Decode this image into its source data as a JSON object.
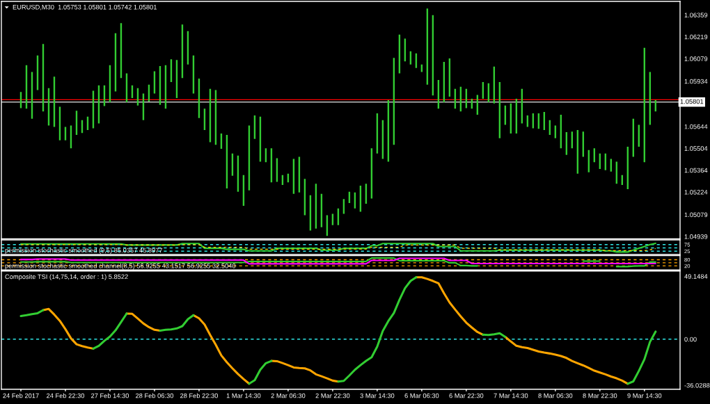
{
  "chart_data": [
    {
      "type": "bar",
      "title": "EURUSD,M30  1.05753 1.05801 1.05742 1.05801",
      "categories": [
        null,
        null,
        null,
        null,
        null,
        null,
        null,
        null,
        null,
        null,
        null,
        null,
        null,
        null,
        null,
        null,
        null,
        null,
        null,
        null,
        null,
        null,
        null,
        null,
        null,
        null,
        null,
        null,
        null,
        null,
        null,
        null,
        null,
        null,
        null,
        null,
        null,
        null,
        null,
        null,
        null,
        null,
        null,
        null,
        null,
        null,
        null,
        null,
        null,
        null,
        null,
        null,
        null,
        null,
        null,
        null,
        null,
        null,
        null,
        null,
        null,
        null,
        null,
        null,
        null,
        null,
        null,
        null,
        null,
        null,
        null,
        null,
        null,
        null,
        null,
        null,
        null,
        null,
        null,
        null,
        null,
        null,
        null,
        null,
        null,
        null,
        null,
        null,
        null,
        null,
        null,
        null,
        null,
        null,
        null,
        null,
        null,
        null,
        null,
        null,
        null,
        null,
        null,
        null,
        null,
        null,
        null,
        null,
        null,
        null,
        null,
        null,
        null,
        null,
        null
      ],
      "base": [
        1.05762,
        1.05758,
        1.05694,
        1.05878,
        1.05741,
        1.05651,
        1.05642,
        1.05556,
        1.05556,
        1.05505,
        1.0559,
        1.05603,
        1.05621,
        1.05633,
        1.05664,
        1.05775,
        1.058,
        1.05869,
        1.05955,
        1.058,
        1.05826,
        1.05779,
        1.05685,
        1.05804,
        1.05856,
        1.05783,
        1.05758,
        1.05929,
        1.05826,
        1.05955,
        1.06041,
        1.05856,
        1.05698,
        1.05621,
        1.05543,
        1.05527,
        1.05501,
        1.05247,
        1.05329,
        1.05226,
        1.05136,
        1.05235,
        1.05565,
        1.05419,
        1.05415,
        1.05286,
        1.0529,
        1.05269,
        1.05286,
        1.05213,
        1.05222,
        1.05076,
        1.04978,
        1.0499,
        1.04999,
        1.04943,
        1.05012,
        1.05012,
        1.05085,
        1.05153,
        1.05119,
        1.05098,
        1.05149,
        1.05183,
        1.05471,
        1.05437,
        1.05419,
        1.05527,
        1.05985,
        1.06062,
        1.06041,
        1.06019,
        1.05994,
        1.05912,
        1.05843,
        1.05758,
        1.058,
        1.05835,
        1.05758,
        1.05741,
        1.05762,
        1.05758,
        1.05719,
        1.05822,
        1.058,
        1.05792,
        1.05569,
        1.05655,
        1.05599,
        1.05599,
        1.05664,
        1.05642,
        1.05633,
        1.05629,
        1.05621,
        1.0559,
        1.05569,
        1.05505,
        1.05462,
        1.05505,
        1.05342,
        1.0545,
        1.05351,
        1.05415,
        1.05372,
        1.05364,
        1.05355,
        1.05277,
        1.05269,
        1.05243,
        1.0545,
        1.05514,
        1.05415,
        1.05655,
        1.05741
      ],
      "values": [
        0.00103,
        0.00279,
        0.003,
        0.00222,
        0.00432,
        0.00239,
        0.00322,
        0.00215,
        0.00086,
        0.00146,
        0.00155,
        0.00082,
        0.00086,
        0.0024,
        0.00244,
        0.00133,
        0.00237,
        0.00373,
        0.00352,
        0.00185,
        0.00082,
        0.00111,
        0.00171,
        0.00108,
        0.00142,
        0.00249,
        0.00279,
        0.00146,
        0.00245,
        0.00343,
        0.00214,
        0.00244,
        0.00253,
        0.00137,
        0.00343,
        0.00351,
        0.00098,
        0.00343,
        0.00142,
        0.00232,
        0.00197,
        0.00416,
        0.0015,
        0.00288,
        0.0009,
        0.00219,
        0.00151,
        0.00064,
        0.00056,
        0.00224,
        0.00228,
        0.00232,
        0.00226,
        0.00287,
        0.00214,
        0.00133,
        0.00073,
        0.00107,
        0.00094,
        0.00073,
        0.00103,
        0.00167,
        0.00128,
        0.00322,
        0.00257,
        0.00248,
        0.00394,
        0.00557,
        0.00248,
        0.00146,
        0.00085,
        0.00094,
        0.00047,
        0.00488,
        0.00515,
        0.00184,
        0.00258,
        0.00245,
        0.00128,
        0.00158,
        0.00124,
        0.00064,
        0.00128,
        0.00107,
        0.00121,
        0.00236,
        0.0036,
        0.00124,
        0.00193,
        0.00223,
        0.00222,
        0.00073,
        0.00095,
        0.00099,
        0.00116,
        0.00095,
        0.00082,
        0.00214,
        0.00146,
        0.00107,
        0.00279,
        0.00162,
        0.00142,
        0.0009,
        0.00099,
        0.00107,
        0.00082,
        0.00142,
        0.00064,
        0.00271,
        0.00244,
        0.00141,
        0.00733,
        0.00339,
        0.00072
      ],
      "color": "#32cd32",
      "ylim": [
        1.04924,
        1.06446
      ],
      "yticks": [
        1.06359,
        1.06219,
        1.06079,
        1.05934,
        1.05644,
        1.05504,
        1.05364,
        1.05224,
        1.05079,
        1.04939
      ],
      "ref_lines": [
        {
          "axis": "y",
          "value": 1.05816,
          "color": "#ff0000"
        },
        {
          "axis": "y",
          "value": 1.05801,
          "label": "1.05801",
          "color": "#c0c0c0"
        }
      ],
      "tick_labels": "y"
    },
    {
      "type": "line",
      "title": "permission stochastic smoothed (9,5) 85.0357 45.8977",
      "categories": [
        null,
        null,
        null,
        null,
        null,
        null,
        null,
        null,
        null,
        null,
        null,
        null,
        null,
        null,
        null,
        null,
        null,
        null,
        null,
        null,
        null,
        null,
        null,
        null,
        null,
        null,
        null,
        null,
        null,
        null,
        null,
        null,
        null,
        null,
        null,
        null,
        null,
        null,
        null,
        null,
        null,
        null,
        null,
        null,
        null,
        null,
        null,
        null,
        null,
        null,
        null,
        null,
        null,
        null,
        null,
        null,
        null,
        null,
        null,
        null,
        null,
        null,
        null,
        null,
        null,
        null,
        null,
        null,
        null,
        null,
        null,
        null,
        null,
        null,
        null,
        null,
        null,
        null,
        null,
        null,
        null,
        null,
        null,
        null,
        null,
        null,
        null,
        null,
        null,
        null,
        null,
        null,
        null,
        null,
        null,
        null,
        null,
        null,
        null,
        null,
        null,
        null,
        null,
        null,
        null,
        null,
        null,
        null,
        null,
        null,
        null,
        null,
        null,
        null,
        null
      ],
      "series": [
        {
          "color": "#32cd32",
          "values": [
            81,
            81,
            81,
            81,
            81,
            81,
            81,
            81,
            81,
            81,
            81,
            81,
            81,
            81,
            81,
            81,
            81,
            81,
            81,
            72,
            72,
            72,
            72,
            72,
            72,
            72,
            72,
            72,
            72,
            83,
            83,
            83,
            83,
            47,
            47,
            47,
            47,
            39,
            39,
            39,
            39,
            28,
            28,
            28,
            28,
            28,
            47,
            47,
            47,
            47,
            47,
            47,
            47,
            47,
            33,
            33,
            33,
            33,
            47,
            47,
            47,
            47,
            47,
            67,
            67,
            83,
            83,
            83,
            83,
            83,
            83,
            83,
            83,
            83,
            83,
            61,
            61,
            61,
            61,
            28,
            28,
            28,
            28,
            28,
            28,
            28,
            33,
            33,
            33,
            33,
            33,
            33,
            33,
            33,
            33,
            33,
            33,
            33,
            33,
            33,
            33,
            33,
            33,
            33,
            33,
            28,
            28,
            19,
            19,
            19,
            33,
            47,
            61,
            75,
            85
          ]
        },
        {
          "color": "#ffd700",
          "line_style": "dashed",
          "values": [
            75,
            75,
            75,
            75,
            75,
            75,
            75,
            75,
            75,
            75,
            75,
            75,
            75,
            75,
            75,
            75,
            75,
            75,
            75,
            72,
            72,
            72,
            72,
            72,
            72,
            72,
            72,
            72,
            72,
            75,
            75,
            75,
            75,
            55,
            55,
            55,
            55,
            55,
            55,
            55,
            55,
            40,
            40,
            40,
            40,
            40,
            40,
            40,
            40,
            40,
            40,
            40,
            40,
            40,
            40,
            40,
            40,
            40,
            42,
            42,
            42,
            42,
            42,
            55,
            55,
            55,
            55,
            55,
            55,
            72,
            72,
            72,
            72,
            72,
            72,
            72,
            72,
            72,
            72,
            47,
            47,
            47,
            47,
            47,
            47,
            47,
            36,
            36,
            36,
            36,
            36,
            36,
            36,
            36,
            36,
            36,
            36,
            36,
            36,
            36,
            36,
            36,
            36,
            36,
            36,
            30,
            30,
            30,
            30,
            30,
            30,
            30,
            30,
            36,
            46
          ]
        }
      ],
      "ylim": [
        0,
        111
      ],
      "yticks": [
        75,
        25
      ],
      "ref_lines": [
        {
          "axis": "y",
          "value": 75,
          "color": "#2ee6e6",
          "line_style": "dashed"
        },
        {
          "axis": "y",
          "value": 50,
          "color": "#2ee6e6",
          "line_style": "dashed"
        },
        {
          "axis": "y",
          "value": 25,
          "color": "#2ee6e6",
          "line_style": "dashed"
        }
      ],
      "tick_labels": "y"
    },
    {
      "type": "line",
      "title": "permission stochastic smoothed channel(8,5) 56.9255 43.1517 56.9255 32.5040",
      "categories": [
        null,
        null,
        null,
        null,
        null,
        null,
        null,
        null,
        null,
        null,
        null,
        null,
        null,
        null,
        null,
        null,
        null,
        null,
        null,
        null,
        null,
        null,
        null,
        null,
        null,
        null,
        null,
        null,
        null,
        null,
        null,
        null,
        null,
        null,
        null,
        null,
        null,
        null,
        null,
        null,
        null,
        null,
        null,
        null,
        null,
        null,
        null,
        null,
        null,
        null,
        null,
        null,
        null,
        null,
        null,
        null,
        null,
        null,
        null,
        null,
        null,
        null,
        null,
        null,
        null,
        null,
        null,
        null,
        null,
        null,
        null,
        null,
        null,
        null,
        null,
        null,
        null,
        null,
        null,
        null,
        null,
        null,
        null,
        null,
        null,
        null,
        null,
        null,
        null,
        null,
        null,
        null,
        null,
        null,
        null,
        null,
        null,
        null,
        null,
        null,
        null,
        null,
        null,
        null,
        null,
        null,
        null,
        null,
        null,
        null,
        null,
        null,
        null,
        null,
        null
      ],
      "series": [
        {
          "color": "#32cd32",
          "values": [
            58,
            58,
            58,
            60,
            60,
            60,
            60,
            60,
            60,
            53,
            53,
            53,
            53,
            53,
            53,
            53,
            53,
            53,
            53,
            53,
            53,
            53,
            53,
            53,
            53,
            53,
            53,
            53,
            53,
            53,
            53,
            53,
            53,
            53,
            53,
            53,
            53,
            53,
            53,
            53,
            53,
            63,
            63,
            63,
            63,
            63,
            63,
            63,
            63,
            63,
            63,
            63,
            63,
            63,
            63,
            63,
            63,
            63,
            63,
            63,
            63,
            63,
            63,
            96,
            96,
            96,
            96,
            96,
            70,
            70,
            70,
            70,
            70,
            70,
            70,
            70,
            70,
            50,
            50,
            23,
            23,
            20,
            20,
            null,
            null,
            null,
            null,
            null,
            null,
            null,
            null,
            null,
            null,
            null,
            null,
            null,
            null,
            null,
            null,
            null,
            null,
            66,
            66,
            66,
            66,
            null,
            null,
            13,
            13,
            13,
            18,
            20,
            20,
            57,
            57
          ]
        },
        {
          "color": "#ff00ff",
          "values": [
            82,
            82,
            82,
            86,
            86,
            86,
            86,
            86,
            86,
            76,
            76,
            76,
            76,
            76,
            76,
            76,
            76,
            76,
            76,
            76,
            76,
            76,
            76,
            76,
            76,
            76,
            76,
            76,
            76,
            76,
            76,
            76,
            76,
            76,
            76,
            76,
            76,
            76,
            76,
            76,
            76,
            40,
            40,
            40,
            40,
            40,
            40,
            40,
            40,
            40,
            40,
            40,
            40,
            40,
            40,
            40,
            40,
            40,
            40,
            40,
            40,
            40,
            40,
            73,
            73,
            73,
            73,
            73,
            93,
            93,
            93,
            93,
            93,
            93,
            93,
            93,
            93,
            73,
            73,
            73,
            73,
            43,
            43,
            43,
            43,
            43,
            43,
            43,
            43,
            43,
            43,
            43,
            43,
            43,
            43,
            43,
            43,
            43,
            43,
            43,
            43,
            43,
            43,
            43,
            43,
            43,
            43,
            43,
            43,
            43,
            43,
            43,
            43,
            43,
            43
          ]
        }
      ],
      "ylim": [
        -20,
        120
      ],
      "yticks": [
        80,
        20
      ],
      "ref_lines": [
        {
          "axis": "y",
          "value": 80,
          "color": "#ffa500",
          "line_style": "dashed"
        },
        {
          "axis": "y",
          "value": 50,
          "color": "#ffa500",
          "line_style": "dashed"
        },
        {
          "axis": "y",
          "value": 20,
          "color": "#ffa500",
          "line_style": "dashed"
        }
      ],
      "tick_labels": "y"
    },
    {
      "type": "line",
      "title": "Composite TSI (14,75,14, order : 1) 5.8522",
      "categories": [
        "24 Feb 2017",
        null,
        null,
        null,
        null,
        null,
        null,
        null,
        "24 Feb 22:30",
        null,
        null,
        null,
        null,
        null,
        null,
        null,
        "27 Feb 14:30",
        null,
        null,
        null,
        null,
        null,
        null,
        null,
        "28 Feb 06:30",
        null,
        null,
        null,
        null,
        null,
        null,
        null,
        "28 Feb 22:30",
        null,
        null,
        null,
        null,
        null,
        null,
        null,
        "1 Mar 14:30",
        null,
        null,
        null,
        null,
        null,
        null,
        null,
        "2 Mar 06:30",
        null,
        null,
        null,
        null,
        null,
        null,
        null,
        "2 Mar 22:30",
        null,
        null,
        null,
        null,
        null,
        null,
        null,
        "3 Mar 14:30",
        null,
        null,
        null,
        null,
        null,
        null,
        null,
        "6 Mar 06:30",
        null,
        null,
        null,
        null,
        null,
        null,
        null,
        "6 Mar 22:30",
        null,
        null,
        null,
        null,
        null,
        null,
        null,
        "7 Mar 14:30",
        null,
        null,
        null,
        null,
        null,
        null,
        null,
        "8 Mar 06:30",
        null,
        null,
        null,
        null,
        null,
        null,
        null,
        "8 Mar 22:30",
        null,
        null,
        null,
        null,
        null,
        null,
        null,
        "9 Mar 14:30",
        null,
        null
      ],
      "series": [
        {
          "color": "#ffa500",
          "values": [
            null,
            null,
            null,
            null,
            22.7,
            23.6,
            19.2,
            14.3,
            7.8,
            0.6,
            -4.0,
            -5.4,
            -6.5,
            -7.4,
            null,
            null,
            null,
            null,
            null,
            20.0,
            19.8,
            16.1,
            12.3,
            9.4,
            7.3,
            6.7,
            null,
            null,
            null,
            null,
            null,
            18.7,
            16.3,
            11.4,
            3.3,
            -4.3,
            -12.7,
            -18.1,
            -22.8,
            -27.2,
            -31.2,
            -34.8,
            null,
            null,
            null,
            -17.0,
            -17.2,
            -18.7,
            -20.3,
            -22.1,
            -22.5,
            -22.8,
            -24.4,
            -27.5,
            -29.0,
            -30.6,
            -32.4,
            -33.1,
            null,
            null,
            null,
            null,
            null,
            null,
            null,
            null,
            null,
            null,
            null,
            null,
            null,
            48.4,
            48.4,
            47.1,
            45.5,
            43.7,
            35.9,
            28.7,
            23.2,
            17.8,
            12.9,
            9.1,
            5.6,
            3.5,
            null,
            null,
            null,
            1.8,
            -1.8,
            -5.2,
            -6.3,
            -6.9,
            -8.3,
            -9.6,
            -10.5,
            -11.2,
            -12.1,
            -13.2,
            -14.7,
            -17.0,
            -18.8,
            -20.5,
            -22.5,
            -24.6,
            -26.1,
            -27.5,
            -29.2,
            -30.6,
            -32.4,
            -34.8,
            null,
            null,
            null,
            null,
            null
          ]
        },
        {
          "color": "#32cd32",
          "values": [
            18.1,
            18.7,
            19.6,
            20.3,
            22.7,
            null,
            null,
            null,
            null,
            null,
            null,
            null,
            null,
            -7.4,
            -5.2,
            -1.3,
            2.0,
            6.9,
            13.4,
            20.0,
            null,
            null,
            null,
            null,
            null,
            6.7,
            7.3,
            7.6,
            8.4,
            10.2,
            15.6,
            18.7,
            null,
            null,
            null,
            null,
            null,
            null,
            null,
            null,
            null,
            -34.8,
            -32.1,
            -23.9,
            -18.8,
            -17.0,
            null,
            null,
            null,
            null,
            null,
            null,
            null,
            null,
            null,
            null,
            null,
            -33.1,
            -32.6,
            -28.4,
            -23.9,
            -20.3,
            -17.0,
            -14.1,
            -5.8,
            6.4,
            14.2,
            20.5,
            30.8,
            39.9,
            45.5,
            48.4,
            null,
            null,
            null,
            null,
            null,
            null,
            null,
            null,
            null,
            null,
            null,
            3.5,
            3.3,
            3.8,
            4.6,
            1.8,
            null,
            null,
            null,
            null,
            null,
            null,
            null,
            null,
            null,
            null,
            null,
            null,
            null,
            null,
            null,
            null,
            null,
            null,
            null,
            null,
            null,
            -34.8,
            -33.0,
            -24.8,
            -15.7,
            -2.1,
            5.9
          ]
        }
      ],
      "ylim": [
        -39.1,
        53.3
      ],
      "yticks": [
        49.1484,
        {
          "value": 0,
          "label": "0.00"
        },
        -36.0288
      ],
      "ref_lines": [
        {
          "axis": "y",
          "value": 0,
          "color": "#2ee6e6",
          "line_style": "dashed"
        }
      ]
    }
  ]
}
